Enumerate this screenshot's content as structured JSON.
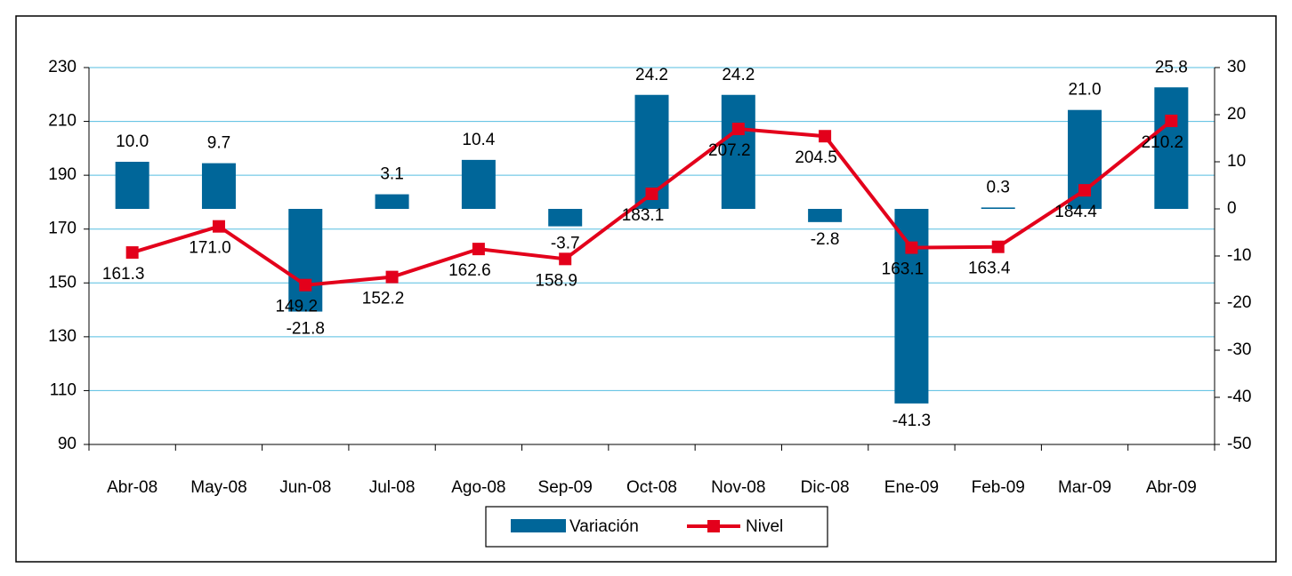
{
  "chart_data": {
    "type": "bar-line",
    "categories": [
      "Abr-08",
      "May-08",
      "Jun-08",
      "Jul-08",
      "Ago-08",
      "Sep-09",
      "Oct-08",
      "Nov-08",
      "Dic-08",
      "Ene-09",
      "Feb-09",
      "Mar-09",
      "Abr-09"
    ],
    "series": [
      {
        "name": "Variación",
        "type": "bar",
        "axis": "y2",
        "color": "#006699",
        "values": [
          10.0,
          9.7,
          -21.8,
          3.1,
          10.4,
          -3.7,
          24.2,
          24.2,
          -2.8,
          -41.3,
          0.3,
          21.0,
          25.8
        ],
        "value_labels": [
          "10.0",
          "9.7",
          "-21.8",
          "3.1",
          "10.4",
          "-3.7",
          "24.2",
          "24.2",
          "-2.8",
          "-41.3",
          "0.3",
          "21.0",
          "25.8"
        ]
      },
      {
        "name": "Nivel",
        "type": "line",
        "color": "#e3001b",
        "values": [
          161.3,
          171.0,
          149.2,
          152.2,
          162.6,
          158.9,
          183.1,
          207.2,
          204.5,
          163.1,
          163.4,
          184.4,
          210.2
        ],
        "value_labels": [
          "161.3",
          "171.0",
          "149.2",
          "152.2",
          "162.6",
          "158.9",
          "183.1",
          "207.2",
          "204.5",
          "163.1",
          "163.4",
          "184.4",
          "210.2"
        ]
      }
    ],
    "ylim": [
      90,
      230
    ],
    "yticks": [
      90,
      110,
      130,
      150,
      170,
      190,
      210,
      230
    ],
    "y2lim": [
      -50,
      30
    ],
    "y2ticks": [
      -50,
      -40,
      -30,
      -20,
      -10,
      0,
      10,
      20,
      30
    ],
    "grid": true,
    "legend": "bottom"
  }
}
